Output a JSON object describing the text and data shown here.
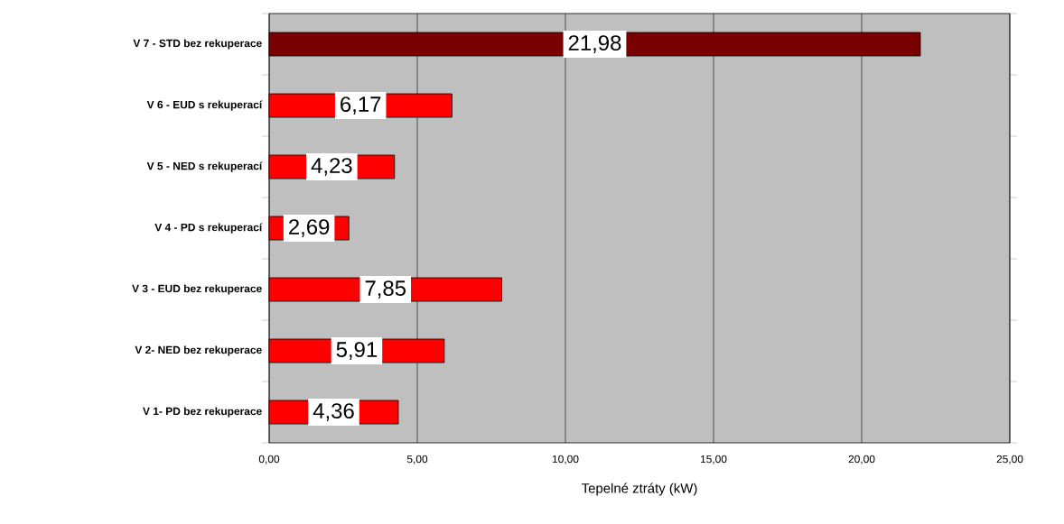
{
  "chart_data": {
    "type": "bar",
    "orientation": "horizontal",
    "categories": [
      "V 7 - STD bez rekuperace",
      "V 6 - EUD s rekuperací",
      "V 5 - NED s rekuperací",
      "V 4 - PD s rekuperací",
      "V 3 - EUD bez rekuperace",
      "V 2- NED bez rekuperace",
      "V 1- PD bez rekuperace"
    ],
    "values": [
      21.98,
      6.17,
      4.23,
      2.69,
      7.85,
      5.91,
      4.36
    ],
    "value_labels": [
      "21,98",
      "6,17",
      "4,23",
      "2,69",
      "7,85",
      "5,91",
      "4,36"
    ],
    "colors": [
      "#7a0000",
      "#ff0000",
      "#ff0000",
      "#ff0000",
      "#ff0000",
      "#ff0000",
      "#ff0000"
    ],
    "xlabel": "Tepelné ztráty (kW)",
    "xlim": [
      0,
      25
    ],
    "xticks": [
      {
        "value": 0,
        "label": "0,00"
      },
      {
        "value": 5,
        "label": "5,00"
      },
      {
        "value": 10,
        "label": "10,00"
      },
      {
        "value": 15,
        "label": "15,00"
      },
      {
        "value": 20,
        "label": "20,00"
      },
      {
        "value": 25,
        "label": "25,00"
      }
    ],
    "grid": "x"
  }
}
